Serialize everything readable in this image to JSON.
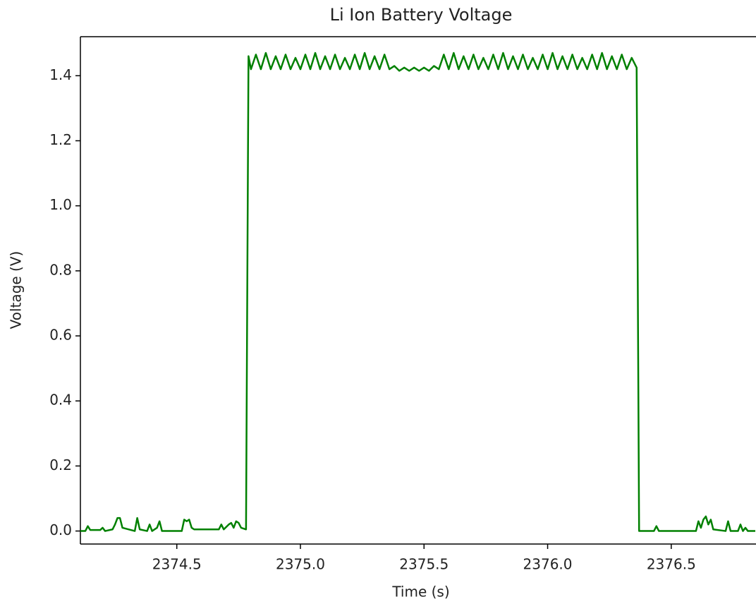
{
  "chart_data": {
    "type": "line",
    "title": "Li Ion Battery Voltage",
    "x_label": "Time (s)",
    "y_label": "Voltage (V)",
    "color": "#008000",
    "xlim": [
      2374.11,
      2376.84
    ],
    "ylim": [
      -0.04,
      1.52
    ],
    "xticks": [
      2374.5,
      {
        "value": 2375.0,
        "label": "2375.0"
      },
      2375.5,
      {
        "value": 2376.0,
        "label": "2376.0"
      },
      2376.5
    ],
    "yticks": [
      {
        "value": 0.0,
        "label": "0.0"
      },
      0.2,
      0.4,
      0.6,
      0.8,
      {
        "value": 1.0,
        "label": "1.0"
      },
      1.2,
      1.4
    ],
    "x": [
      2374.11,
      2374.13,
      2374.14,
      2374.15,
      2374.19,
      2374.2,
      2374.21,
      2374.24,
      2374.25,
      2374.26,
      2374.27,
      2374.28,
      2374.33,
      2374.34,
      2374.35,
      2374.38,
      2374.39,
      2374.4,
      2374.42,
      2374.43,
      2374.44,
      2374.52,
      2374.53,
      2374.54,
      2374.55,
      2374.56,
      2374.57,
      2374.67,
      2374.68,
      2374.69,
      2374.71,
      2374.72,
      2374.73,
      2374.74,
      2374.75,
      2374.76,
      2374.78,
      2374.79,
      2374.8,
      2374.82,
      2374.84,
      2374.86,
      2374.88,
      2374.9,
      2374.92,
      2374.94,
      2374.96,
      2374.98,
      2375.0,
      2375.02,
      2375.04,
      2375.06,
      2375.08,
      2375.1,
      2375.12,
      2375.14,
      2375.16,
      2375.18,
      2375.2,
      2375.22,
      2375.24,
      2375.26,
      2375.28,
      2375.3,
      2375.32,
      2375.34,
      2375.36,
      2375.38,
      2375.4,
      2375.42,
      2375.44,
      2375.46,
      2375.48,
      2375.5,
      2375.52,
      2375.54,
      2375.56,
      2375.58,
      2375.6,
      2375.62,
      2375.64,
      2375.66,
      2375.68,
      2375.7,
      2375.72,
      2375.74,
      2375.76,
      2375.78,
      2375.8,
      2375.82,
      2375.84,
      2375.86,
      2375.88,
      2375.9,
      2375.92,
      2375.94,
      2375.96,
      2375.98,
      2376.0,
      2376.02,
      2376.04,
      2376.06,
      2376.08,
      2376.1,
      2376.12,
      2376.14,
      2376.16,
      2376.18,
      2376.2,
      2376.22,
      2376.24,
      2376.26,
      2376.28,
      2376.3,
      2376.32,
      2376.34,
      2376.36,
      2376.37,
      2376.43,
      2376.44,
      2376.45,
      2376.6,
      2376.61,
      2376.62,
      2376.63,
      2376.64,
      2376.65,
      2376.66,
      2376.67,
      2376.72,
      2376.73,
      2376.74,
      2376.77,
      2376.78,
      2376.79,
      2376.8,
      2376.81,
      2376.84
    ],
    "values": [
      0.0,
      0.0,
      0.015,
      0.003,
      0.003,
      0.01,
      0.0,
      0.005,
      0.02,
      0.04,
      0.04,
      0.01,
      0.0,
      0.04,
      0.005,
      0.0,
      0.02,
      0.0,
      0.01,
      0.03,
      0.0,
      0.0,
      0.035,
      0.03,
      0.035,
      0.01,
      0.005,
      0.005,
      0.02,
      0.005,
      0.02,
      0.025,
      0.01,
      0.03,
      0.025,
      0.01,
      0.005,
      1.46,
      1.42,
      1.465,
      1.42,
      1.47,
      1.42,
      1.46,
      1.42,
      1.465,
      1.42,
      1.455,
      1.42,
      1.465,
      1.42,
      1.47,
      1.42,
      1.46,
      1.42,
      1.465,
      1.42,
      1.455,
      1.42,
      1.465,
      1.42,
      1.47,
      1.42,
      1.46,
      1.42,
      1.465,
      1.42,
      1.43,
      1.415,
      1.425,
      1.415,
      1.425,
      1.415,
      1.425,
      1.415,
      1.43,
      1.42,
      1.465,
      1.42,
      1.47,
      1.42,
      1.46,
      1.42,
      1.465,
      1.42,
      1.455,
      1.42,
      1.465,
      1.42,
      1.47,
      1.42,
      1.46,
      1.42,
      1.465,
      1.42,
      1.455,
      1.42,
      1.465,
      1.42,
      1.47,
      1.42,
      1.46,
      1.42,
      1.465,
      1.42,
      1.455,
      1.42,
      1.465,
      1.42,
      1.47,
      1.42,
      1.46,
      1.42,
      1.465,
      1.42,
      1.455,
      1.425,
      0.0,
      0.0,
      0.015,
      0.0,
      0.0,
      0.03,
      0.01,
      0.035,
      0.045,
      0.02,
      0.035,
      0.005,
      0.0,
      0.03,
      0.0,
      0.0,
      0.02,
      0.0,
      0.01,
      0.0,
      0.0
    ]
  }
}
